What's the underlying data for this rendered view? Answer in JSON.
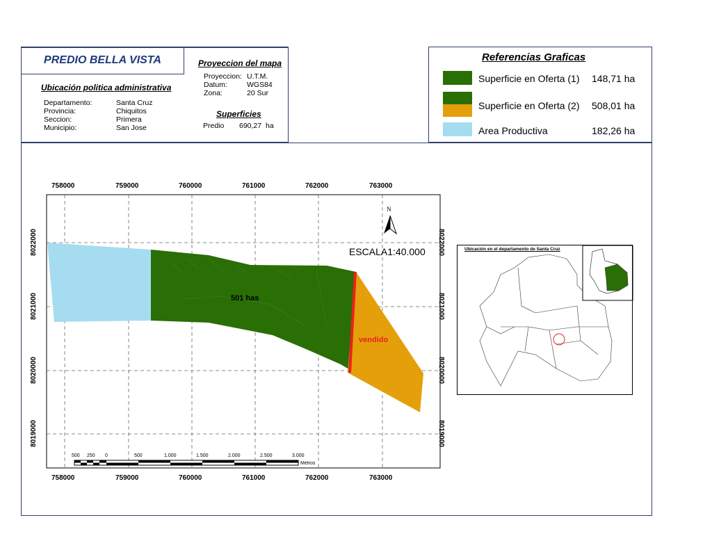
{
  "title": "PREDIO BELLA VISTA",
  "ubicacion": {
    "heading": "Ubicación politica administrativa",
    "rows": [
      {
        "label": "Departamento:",
        "value": "Santa Cruz"
      },
      {
        "label": "Provincia:",
        "value": "Chiquitos"
      },
      {
        "label": "Seccion:",
        "value": "Primera"
      },
      {
        "label": "Municipio:",
        "value": "San Jose"
      }
    ]
  },
  "proyeccion": {
    "heading": "Proyeccion del mapa",
    "rows": [
      {
        "label": "Proyeccion:",
        "value": "U.T.M."
      },
      {
        "label": "Datum:",
        "value": "WGS84"
      },
      {
        "label": "Zona:",
        "value": "20 Sur"
      }
    ]
  },
  "superficies": {
    "heading": "Superficies",
    "label": "Predio",
    "value": "690,27",
    "unit": "ha"
  },
  "legend": {
    "title": "Referencias Graficas",
    "items": [
      {
        "label": "Superficie en Oferta (1)",
        "value": "148,71 ha",
        "color": "#2a6e06"
      },
      {
        "label": "Superficie en Oferta (2)",
        "value": "508,01 ha",
        "color": "#2a6e06",
        "color2": "#e59f0a"
      },
      {
        "label": "Area Productiva",
        "value": "182,26 ha",
        "color": "#a6dcf0"
      }
    ]
  },
  "map": {
    "x_ticks": [
      "758000",
      "759000",
      "760000",
      "761000",
      "762000",
      "763000"
    ],
    "y_ticks": [
      "8022000",
      "8021000",
      "8020000",
      "8019000"
    ],
    "scale_text": "ESCALA1:40.000",
    "north": "N",
    "label_501": "501 has",
    "label_vendido": "vendido",
    "colors": {
      "green": "#2a6e06",
      "orange": "#e59f0a",
      "blue": "#a6dcf0",
      "red": "#e8231c"
    },
    "scalebar": {
      "labels": [
        "500",
        "250",
        "0",
        "500",
        "1.000",
        "1.500",
        "2.000",
        "2.500",
        "3.000"
      ],
      "unit": "Metros"
    }
  },
  "inset": {
    "title": "Ubicación en el departamento de Santa Cruz"
  }
}
